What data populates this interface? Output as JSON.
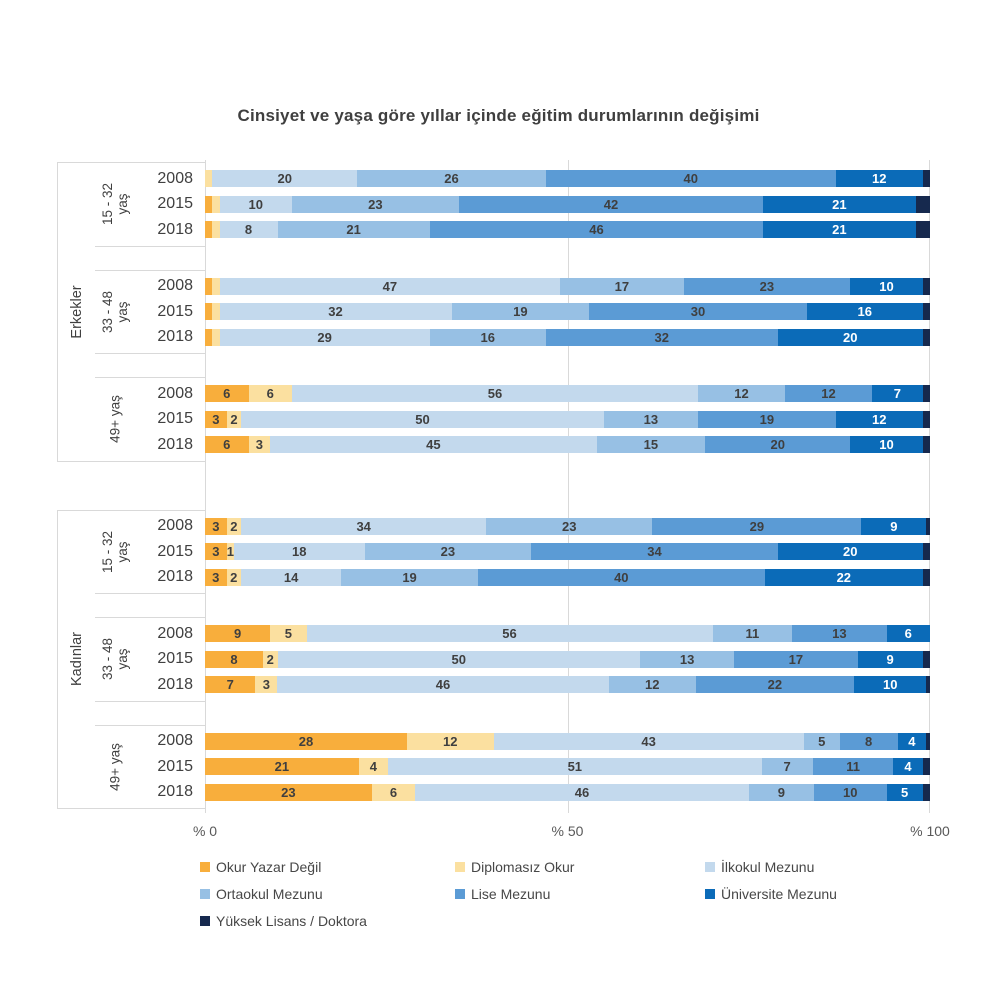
{
  "title": "Cinsiyet ve yaşa göre yıllar içinde eğitim durumlarının değişimi",
  "chart_data": {
    "type": "bar",
    "variant": "horizontal-stacked",
    "unit": "%",
    "x_axis": {
      "range": [
        0,
        100
      ],
      "ticks": [
        "% 0",
        "% 50",
        "% 100"
      ],
      "gridlines_at": [
        0,
        50,
        100
      ]
    },
    "legend_position": "bottom",
    "legend": [
      {
        "label": "Okur Yazar Değil",
        "color": "#F8AE3C"
      },
      {
        "label": "Diplomasız Okur",
        "color": "#FBE0A0"
      },
      {
        "label": "İlkokul Mezunu",
        "color": "#C3D9ED"
      },
      {
        "label": "Ortaokul Mezunu",
        "color": "#97C0E4"
      },
      {
        "label": "Lise Mezunu",
        "color": "#5B9BD5"
      },
      {
        "label": "Üniversite Mezunu",
        "color": "#0B6BB8"
      },
      {
        "label": "Yüksek Lisans / Doktora",
        "color": "#16294E"
      }
    ],
    "label_text_colors": {
      "dark_on_segments": [
        0,
        1,
        2,
        3,
        4
      ],
      "light_on_segments": [
        5,
        6
      ]
    },
    "groups": [
      {
        "gender": "Erkekler",
        "age_groups": [
          {
            "age": "15 - 32 yaş",
            "age_lines": [
              "15 - 32",
              "yaş"
            ],
            "rows": [
              {
                "year": "2008",
                "values": [
                  0,
                  1,
                  20,
                  26,
                  40,
                  12,
                  1
                ],
                "labels": [
                  "",
                  "",
                  "20",
                  "26",
                  "40",
                  "12",
                  ""
                ]
              },
              {
                "year": "2015",
                "values": [
                  1,
                  1,
                  10,
                  23,
                  42,
                  21,
                  2
                ],
                "labels": [
                  "",
                  "",
                  "10",
                  "23",
                  "42",
                  "21",
                  ""
                ]
              },
              {
                "year": "2018",
                "values": [
                  1,
                  1,
                  8,
                  21,
                  46,
                  21,
                  2
                ],
                "labels": [
                  "",
                  "",
                  "8",
                  "21",
                  "46",
                  "21",
                  ""
                ]
              }
            ]
          },
          {
            "age": "33 - 48 yaş",
            "age_lines": [
              "33 - 48",
              "yaş"
            ],
            "rows": [
              {
                "year": "2008",
                "values": [
                  1,
                  1,
                  47,
                  17,
                  23,
                  10,
                  1
                ],
                "labels": [
                  "",
                  "",
                  "47",
                  "17",
                  "23",
                  "10",
                  ""
                ]
              },
              {
                "year": "2015",
                "values": [
                  1,
                  1,
                  32,
                  19,
                  30,
                  16,
                  1
                ],
                "labels": [
                  "",
                  "",
                  "32",
                  "19",
                  "30",
                  "16",
                  ""
                ]
              },
              {
                "year": "2018",
                "values": [
                  1,
                  1,
                  29,
                  16,
                  32,
                  20,
                  1
                ],
                "labels": [
                  "",
                  "",
                  "29",
                  "16",
                  "32",
                  "20",
                  ""
                ]
              }
            ]
          },
          {
            "age": "49+ yaş",
            "age_lines": [
              "49+ yaş"
            ],
            "rows": [
              {
                "year": "2008",
                "values": [
                  6,
                  6,
                  56,
                  12,
                  12,
                  7,
                  1
                ],
                "labels": [
                  "6",
                  "6",
                  "56",
                  "12",
                  "12",
                  "7",
                  ""
                ]
              },
              {
                "year": "2015",
                "values": [
                  3,
                  2,
                  50,
                  13,
                  19,
                  12,
                  1
                ],
                "labels": [
                  "3",
                  "2",
                  "50",
                  "13",
                  "19",
                  "12",
                  ""
                ]
              },
              {
                "year": "2018",
                "values": [
                  6,
                  3,
                  45,
                  15,
                  20,
                  10,
                  1
                ],
                "labels": [
                  "6",
                  "3",
                  "45",
                  "15",
                  "20",
                  "10",
                  ""
                ]
              }
            ]
          }
        ]
      },
      {
        "gender": "Kadınlar",
        "age_groups": [
          {
            "age": "15 - 32 yaş",
            "age_lines": [
              "15 - 32",
              "yaş"
            ],
            "rows": [
              {
                "year": "2008",
                "values": [
                  3,
                  2,
                  34,
                  23,
                  29,
                  9,
                  0.5
                ],
                "labels": [
                  "3",
                  "2",
                  "34",
                  "23",
                  "29",
                  "9",
                  ""
                ]
              },
              {
                "year": "2015",
                "values": [
                  3,
                  1,
                  18,
                  23,
                  34,
                  20,
                  1
                ],
                "labels": [
                  "3",
                  "1",
                  "18",
                  "23",
                  "34",
                  "20",
                  ""
                ]
              },
              {
                "year": "2018",
                "values": [
                  3,
                  2,
                  14,
                  19,
                  40,
                  22,
                  1
                ],
                "labels": [
                  "3",
                  "2",
                  "14",
                  "19",
                  "40",
                  "22",
                  ""
                ]
              }
            ]
          },
          {
            "age": "33 - 48 yaş",
            "age_lines": [
              "33 - 48",
              "yaş"
            ],
            "rows": [
              {
                "year": "2008",
                "values": [
                  9,
                  5,
                  56,
                  11,
                  13,
                  6,
                  0
                ],
                "labels": [
                  "9",
                  "5",
                  "56",
                  "11",
                  "13",
                  "6",
                  ""
                ]
              },
              {
                "year": "2015",
                "values": [
                  8,
                  2,
                  50,
                  13,
                  17,
                  9,
                  1
                ],
                "labels": [
                  "8",
                  "2",
                  "50",
                  "13",
                  "17",
                  "9",
                  ""
                ]
              },
              {
                "year": "2018",
                "values": [
                  7,
                  3,
                  46,
                  12,
                  22,
                  10,
                  0.5
                ],
                "labels": [
                  "7",
                  "3",
                  "46",
                  "12",
                  "22",
                  "10",
                  ""
                ]
              }
            ]
          },
          {
            "age": "49+ yaş",
            "age_lines": [
              "49+ yaş"
            ],
            "rows": [
              {
                "year": "2008",
                "values": [
                  28,
                  12,
                  43,
                  5,
                  8,
                  4,
                  0.5
                ],
                "labels": [
                  "28",
                  "12",
                  "43",
                  "5",
                  "8",
                  "4",
                  ""
                ]
              },
              {
                "year": "2015",
                "values": [
                  21,
                  4,
                  51,
                  7,
                  11,
                  4,
                  1
                ],
                "labels": [
                  "21",
                  "4",
                  "51",
                  "7",
                  "11",
                  "4",
                  ""
                ]
              },
              {
                "year": "2018",
                "values": [
                  23,
                  6,
                  46,
                  9,
                  10,
                  5,
                  1
                ],
                "labels": [
                  "23",
                  "6",
                  "46",
                  "9",
                  "10",
                  "5",
                  ""
                ]
              }
            ]
          }
        ]
      }
    ]
  }
}
